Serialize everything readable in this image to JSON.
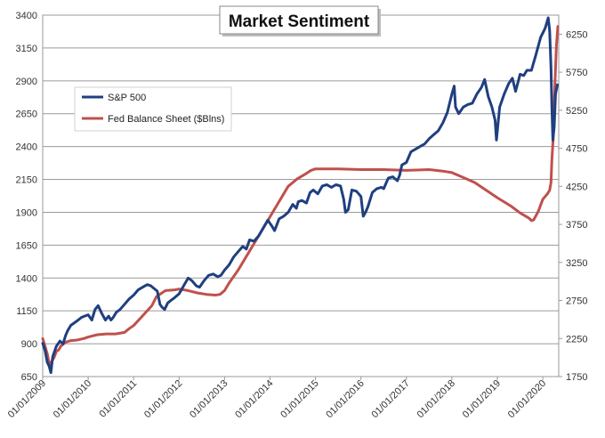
{
  "chart_data": {
    "type": "line",
    "title": "Market Sentiment",
    "xlabel": "",
    "ylabel": "",
    "x_ticks": [
      "01/01/2009",
      "01/01/2010",
      "01/01/2011",
      "01/01/2012",
      "01/01/2013",
      "01/01/2014",
      "01/01/2015",
      "01/01/2016",
      "01/01/2017",
      "01/01/2018",
      "01/01/2019",
      "01/01/2020"
    ],
    "x_range": [
      2009.0,
      2020.35
    ],
    "y_left": {
      "ylim": [
        650,
        3400
      ],
      "ticks": [
        "650",
        "900",
        "1150",
        "1400",
        "1650",
        "1900",
        "2150",
        "2400",
        "2650",
        "2900",
        "3150",
        "3400"
      ]
    },
    "y_right": {
      "ylim": [
        1750,
        6500
      ],
      "ticks": [
        "1750",
        "2250",
        "2750",
        "3250",
        "3750",
        "4250",
        "4750",
        "5250",
        "5750",
        "6250"
      ]
    },
    "grid": true,
    "legend": "upper-left",
    "series": [
      {
        "name": "S&P 500",
        "axis": "left",
        "color": "#1f3f7f",
        "x": [
          2009.0,
          2009.05,
          2009.1,
          2009.14,
          2009.18,
          2009.22,
          2009.3,
          2009.38,
          2009.45,
          2009.5,
          2009.55,
          2009.62,
          2009.7,
          2009.78,
          2009.85,
          2009.92,
          2010.0,
          2010.08,
          2010.15,
          2010.22,
          2010.3,
          2010.38,
          2010.45,
          2010.5,
          2010.55,
          2010.62,
          2010.7,
          2010.8,
          2010.9,
          2011.0,
          2011.1,
          2011.2,
          2011.3,
          2011.38,
          2011.45,
          2011.52,
          2011.58,
          2011.62,
          2011.68,
          2011.75,
          2011.82,
          2011.9,
          2012.0,
          2012.1,
          2012.2,
          2012.28,
          2012.38,
          2012.45,
          2012.55,
          2012.65,
          2012.75,
          2012.85,
          2012.92,
          2013.0,
          2013.1,
          2013.2,
          2013.3,
          2013.4,
          2013.48,
          2013.55,
          2013.65,
          2013.75,
          2013.85,
          2013.95,
          2014.05,
          2014.1,
          2014.2,
          2014.3,
          2014.4,
          2014.5,
          2014.58,
          2014.62,
          2014.7,
          2014.8,
          2014.88,
          2014.95,
          2015.05,
          2015.15,
          2015.25,
          2015.35,
          2015.45,
          2015.55,
          2015.62,
          2015.66,
          2015.72,
          2015.8,
          2015.9,
          2016.0,
          2016.05,
          2016.1,
          2016.15,
          2016.25,
          2016.35,
          2016.45,
          2016.5,
          2016.6,
          2016.7,
          2016.8,
          2016.85,
          2016.9,
          2017.0,
          2017.1,
          2017.2,
          2017.3,
          2017.4,
          2017.5,
          2017.6,
          2017.7,
          2017.8,
          2017.9,
          2018.0,
          2018.05,
          2018.08,
          2018.15,
          2018.25,
          2018.35,
          2018.45,
          2018.55,
          2018.65,
          2018.72,
          2018.8,
          2018.88,
          2018.95,
          2018.98,
          2019.05,
          2019.15,
          2019.25,
          2019.33,
          2019.4,
          2019.5,
          2019.58,
          2019.65,
          2019.75,
          2019.85,
          2019.95,
          2020.05,
          2020.12,
          2020.15,
          2020.18,
          2020.2,
          2020.22,
          2020.25,
          2020.28,
          2020.32
        ],
        "values": [
          903,
          850,
          760,
          730,
          680,
          800,
          880,
          920,
          900,
          960,
          1000,
          1040,
          1060,
          1080,
          1100,
          1110,
          1120,
          1080,
          1160,
          1190,
          1130,
          1080,
          1110,
          1080,
          1100,
          1140,
          1160,
          1200,
          1240,
          1270,
          1310,
          1330,
          1350,
          1340,
          1320,
          1300,
          1200,
          1180,
          1160,
          1210,
          1230,
          1250,
          1280,
          1340,
          1400,
          1380,
          1340,
          1330,
          1380,
          1420,
          1430,
          1410,
          1420,
          1460,
          1500,
          1560,
          1600,
          1640,
          1620,
          1690,
          1680,
          1720,
          1780,
          1840,
          1790,
          1760,
          1850,
          1870,
          1900,
          1960,
          1930,
          1980,
          1990,
          1970,
          2050,
          2070,
          2040,
          2100,
          2110,
          2090,
          2110,
          2100,
          2000,
          1900,
          1920,
          2070,
          2060,
          2020,
          1870,
          1900,
          1940,
          2050,
          2080,
          2090,
          2080,
          2160,
          2170,
          2140,
          2180,
          2260,
          2280,
          2360,
          2380,
          2400,
          2420,
          2460,
          2490,
          2520,
          2580,
          2660,
          2800,
          2860,
          2700,
          2650,
          2700,
          2720,
          2730,
          2800,
          2850,
          2910,
          2780,
          2700,
          2600,
          2450,
          2700,
          2800,
          2880,
          2920,
          2820,
          2950,
          2940,
          2980,
          2980,
          3100,
          3230,
          3300,
          3380,
          3280,
          3000,
          2700,
          2450,
          2550,
          2800,
          2870
        ]
      },
      {
        "name": "Fed Balance Sheet ($Blns)",
        "axis": "right",
        "color": "#c0504d",
        "x": [
          2009.0,
          2009.05,
          2009.1,
          2009.15,
          2009.2,
          2009.25,
          2009.3,
          2009.35,
          2009.4,
          2009.5,
          2009.6,
          2009.75,
          2009.9,
          2010.0,
          2010.2,
          2010.4,
          2010.6,
          2010.8,
          2010.9,
          2011.0,
          2011.2,
          2011.4,
          2011.5,
          2011.7,
          2011.9,
          2012.0,
          2012.2,
          2012.4,
          2012.6,
          2012.8,
          2012.9,
          2013.0,
          2013.1,
          2013.3,
          2013.5,
          2013.7,
          2013.9,
          2014.0,
          2014.2,
          2014.4,
          2014.6,
          2014.8,
          2014.9,
          2015.0,
          2015.5,
          2016.0,
          2016.5,
          2017.0,
          2017.5,
          2017.8,
          2018.0,
          2018.2,
          2018.5,
          2018.8,
          2019.0,
          2019.3,
          2019.5,
          2019.7,
          2019.75,
          2019.8,
          2019.9,
          2020.0,
          2020.1,
          2020.15,
          2020.18,
          2020.2,
          2020.23,
          2020.26,
          2020.3,
          2020.33
        ],
        "values": [
          2250,
          2150,
          2050,
          1900,
          1950,
          2000,
          2080,
          2100,
          2150,
          2200,
          2220,
          2230,
          2250,
          2270,
          2300,
          2310,
          2310,
          2330,
          2380,
          2420,
          2550,
          2680,
          2800,
          2880,
          2890,
          2900,
          2880,
          2850,
          2830,
          2820,
          2830,
          2880,
          2980,
          3150,
          3350,
          3550,
          3750,
          3850,
          4050,
          4250,
          4350,
          4420,
          4460,
          4480,
          4480,
          4470,
          4470,
          4460,
          4470,
          4450,
          4430,
          4380,
          4300,
          4180,
          4100,
          3990,
          3900,
          3830,
          3800,
          3810,
          3920,
          4080,
          4150,
          4200,
          4300,
          4600,
          4900,
          5500,
          6100,
          6350
        ]
      }
    ]
  }
}
